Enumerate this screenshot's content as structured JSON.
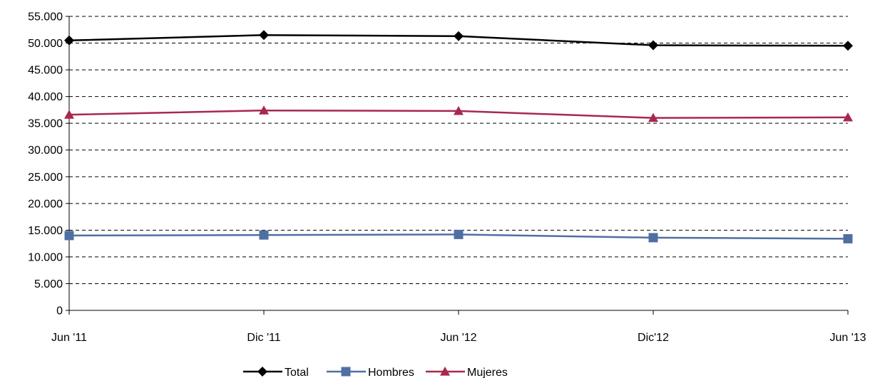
{
  "chart_data": {
    "type": "line",
    "categories": [
      "Jun '11",
      "Dic '11",
      "Jun '12",
      "Dic'12",
      "Jun '13"
    ],
    "ylim": [
      0,
      55000
    ],
    "yticks": [
      0,
      5000,
      10000,
      15000,
      20000,
      25000,
      30000,
      35000,
      40000,
      45000,
      50000,
      55000
    ],
    "ytick_labels": [
      "0",
      "5.000",
      "10.000",
      "15.000",
      "20.000",
      "25.000",
      "30.000",
      "35.000",
      "40.000",
      "45.000",
      "50.000",
      "55.000"
    ],
    "grid": "horizontal dashed",
    "legend": "bottom-center",
    "series": [
      {
        "name": "Total",
        "color": "#000000",
        "marker": "diamond",
        "values": [
          50500,
          51500,
          51300,
          49600,
          49500
        ]
      },
      {
        "name": "Hombres",
        "color": "#4F6FA3",
        "marker": "square",
        "values": [
          14000,
          14100,
          14200,
          13600,
          13400
        ]
      },
      {
        "name": "Mujeres",
        "color": "#A8284E",
        "marker": "triangle",
        "values": [
          36600,
          37400,
          37300,
          36000,
          36100
        ]
      }
    ]
  }
}
